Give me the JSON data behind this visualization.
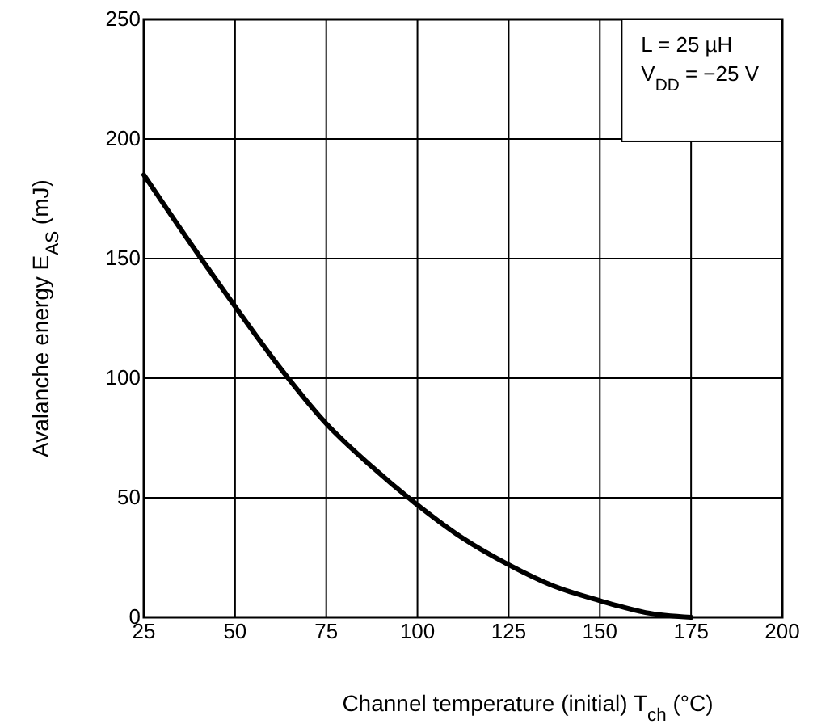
{
  "chart_data": {
    "type": "line",
    "xlabel": "Channel temperature (initial)   T$_{ch}$   (°C)",
    "ylabel": "Avalanche energy   E$_{AS}$   (mJ)",
    "x": [
      25,
      37.5,
      50,
      62.5,
      75,
      87.5,
      100,
      112.5,
      125,
      137.5,
      150,
      162.5,
      175
    ],
    "series": [
      {
        "color": "#000000",
        "values": [
          185,
          157,
          130,
          104,
          81,
          63,
          47,
          33,
          22,
          13,
          7,
          2,
          0
        ]
      }
    ],
    "xlim": [
      25,
      200
    ],
    "ylim": [
      0,
      250
    ],
    "xticks": [
      25,
      50,
      75,
      100,
      125,
      150,
      175,
      200
    ],
    "yticks": [
      0,
      50,
      100,
      150,
      200,
      250
    ],
    "grid": true,
    "marker": "none",
    "line_style": "solid",
    "annotations": [
      "L = 25 µH",
      "V$_{DD}$ = −25 V"
    ]
  }
}
